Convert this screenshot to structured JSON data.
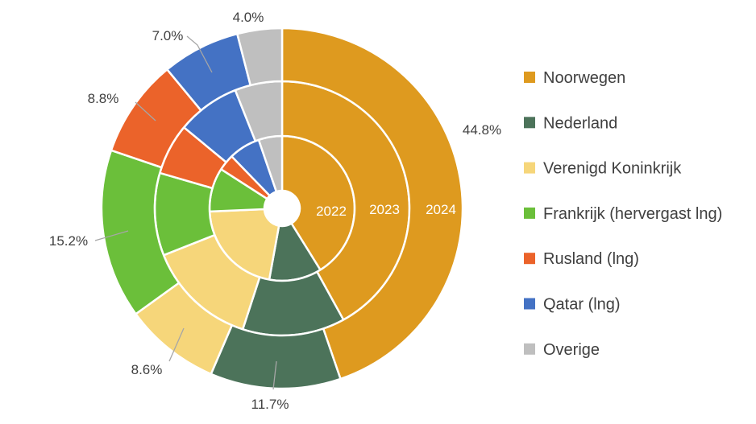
{
  "chart_data": {
    "type": "pie",
    "subtype": "multi-level doughnut",
    "title": "",
    "rings": [
      "2022",
      "2023",
      "2024"
    ],
    "categories": [
      "Noorwegen",
      "Nederland",
      "Verenigd Koninkrijk",
      "Frankrijk (hervergast lng)",
      "Rusland (lng)",
      "Qatar (lng)",
      "Overige"
    ],
    "colors": [
      "#DE9A1F",
      "#4C735A",
      "#F6D67A",
      "#6BBF3A",
      "#EB632A",
      "#4472C4",
      "#BFBFBF"
    ],
    "series": [
      {
        "name": "2022",
        "values": [
          37.0,
          10.5,
          19.3,
          8.8,
          3.3,
          6.3,
          4.7
        ]
      },
      {
        "name": "2023",
        "values": [
          42.0,
          13.0,
          14.0,
          10.5,
          6.5,
          8.0,
          6.0
        ]
      },
      {
        "name": "2024",
        "values": [
          44.8,
          11.7,
          8.6,
          15.2,
          8.8,
          7.0,
          4.0
        ]
      }
    ],
    "outer_labels": [
      "44.8%",
      "11.7%",
      "8.6%",
      "15.2%",
      "8.8%",
      "7.0%",
      "4.0%"
    ],
    "legend_position": "right"
  }
}
